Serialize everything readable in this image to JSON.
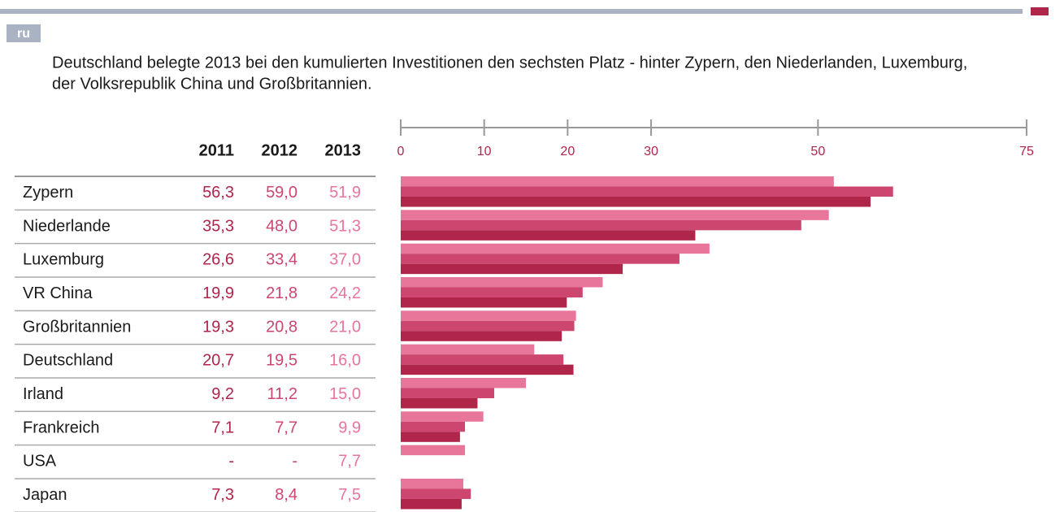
{
  "tab": "ru",
  "description": [
    "Deutschland belegte 2013 bei den kumulierten Investitionen den sechsten Platz - hinter Zypern, den Niederlanden, Luxemburg,",
    "der Volksrepublik China und Großbritannien."
  ],
  "chart_data": {
    "type": "bar",
    "orientation": "horizontal",
    "categories": [
      "Zypern",
      "Niederlande",
      "Luxemburg",
      "VR China",
      "Großbritannien",
      "Deutschland",
      "Irland",
      "Frankreich",
      "USA",
      "Japan"
    ],
    "series": [
      {
        "name": "2011",
        "color": "#b0254a",
        "values": [
          56.3,
          35.3,
          26.6,
          19.9,
          19.3,
          20.7,
          9.2,
          7.1,
          null,
          7.3
        ],
        "value_labels": [
          "56,3",
          "35,3",
          "26,6",
          "19,9",
          "19,3",
          "20,7",
          "9,2",
          "7,1",
          "-",
          "7,3"
        ]
      },
      {
        "name": "2012",
        "color": "#cc4670",
        "values": [
          59.0,
          48.0,
          33.4,
          21.8,
          20.8,
          19.5,
          11.2,
          7.7,
          null,
          8.4
        ],
        "value_labels": [
          "59,0",
          "48,0",
          "33,4",
          "21,8",
          "20,8",
          "19,5",
          "11,2",
          "7,7",
          "-",
          "8,4"
        ]
      },
      {
        "name": "2013",
        "color": "#e8759a",
        "values": [
          51.9,
          51.3,
          37.0,
          24.2,
          21.0,
          16.0,
          15.0,
          9.9,
          7.7,
          7.5
        ],
        "value_labels": [
          "51,9",
          "51,3",
          "37,0",
          "24,2",
          "21,0",
          "16,0",
          "15,0",
          "9,9",
          "7,7",
          "7,5"
        ]
      }
    ],
    "xlim": [
      0,
      75
    ],
    "xticks": [
      0,
      10,
      20,
      30,
      50,
      75
    ]
  }
}
